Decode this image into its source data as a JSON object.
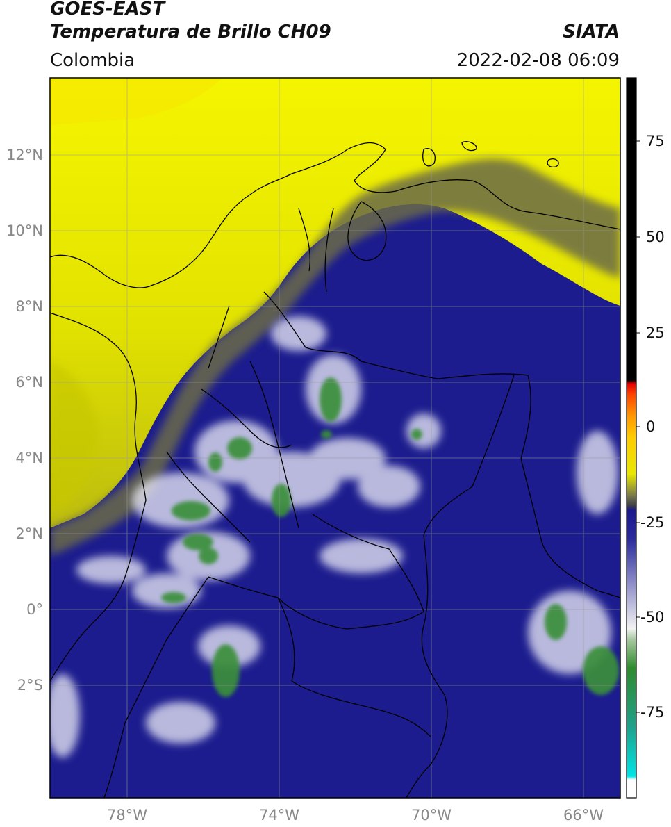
{
  "header": {
    "satellite": "GOES-EAST",
    "product": "Temperatura de Brillo CH09",
    "region": "Colombia",
    "organization": "SIATA",
    "timestamp": "2022-02-08 06:09"
  },
  "map": {
    "lat_ticks": [
      "12°N",
      "10°N",
      "8°N",
      "6°N",
      "4°N",
      "2°N",
      "0°",
      "2°S"
    ],
    "lon_ticks": [
      "78°W",
      "74°W",
      "70°W",
      "66°W"
    ],
    "extent": {
      "lon_min": -80,
      "lon_max": -65,
      "lat_min": -5,
      "lat_max": 14
    },
    "gridlines": true
  },
  "colorbar": {
    "ticks": [
      "75",
      "50",
      "25",
      "0",
      "-25",
      "-50",
      "-75"
    ],
    "range": [
      -95,
      90
    ],
    "colors": [
      "#ffffff",
      "#00e5e5",
      "#1fa089",
      "#2e8b2e",
      "#f2f2f2",
      "#1a1a8c",
      "#3a3a4a",
      "#e8e800",
      "#ff9900",
      "#e60000",
      "#000000"
    ]
  }
}
